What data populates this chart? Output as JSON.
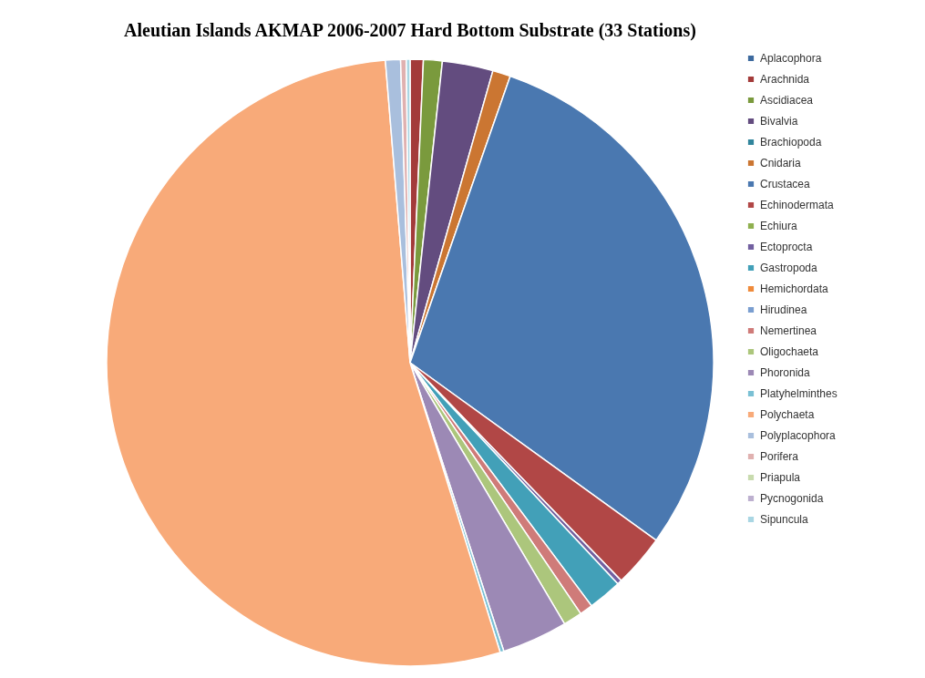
{
  "chart_data": {
    "type": "pie",
    "title": "Aleutian Islands AKMAP 2006-2007 Hard Bottom Substrate (33 Stations)",
    "categories": [
      "Aplacophora",
      "Arachnida",
      "Ascidiacea",
      "Bivalvia",
      "Brachiopoda",
      "Cnidaria",
      "Crustacea",
      "Echinodermata",
      "Echiura",
      "Ectoprocta",
      "Gastropoda",
      "Hemichordata",
      "Hirudinea",
      "Nemertinea",
      "Oligochaeta",
      "Phoronida",
      "Platyhelminthes",
      "Polychaeta",
      "Polyplacophora",
      "Porifera",
      "Priapula",
      "Pycnogonida",
      "Sipuncula"
    ],
    "values": [
      0,
      0.7,
      1.0,
      2.7,
      0,
      0.95,
      29.6,
      2.8,
      0,
      0.25,
      1.8,
      0,
      0,
      0.7,
      1.0,
      3.5,
      0.2,
      53.5,
      0.8,
      0.3,
      0,
      0,
      0.2
    ],
    "colors": [
      "#3d6a9e",
      "#a33b3a",
      "#7a9a3d",
      "#634c7f",
      "#31859c",
      "#cb7632",
      "#4a78b0",
      "#b14746",
      "#8fb04f",
      "#7260a0",
      "#42a0b8",
      "#ef8a3a",
      "#7a9ed0",
      "#cf7b79",
      "#acc67c",
      "#9c89b5",
      "#7ac0d4",
      "#f8aa79",
      "#a9bfdd",
      "#e0b1b0",
      "#c8dbae",
      "#bdb0cf",
      "#a9d6e3"
    ],
    "legend": "right"
  }
}
